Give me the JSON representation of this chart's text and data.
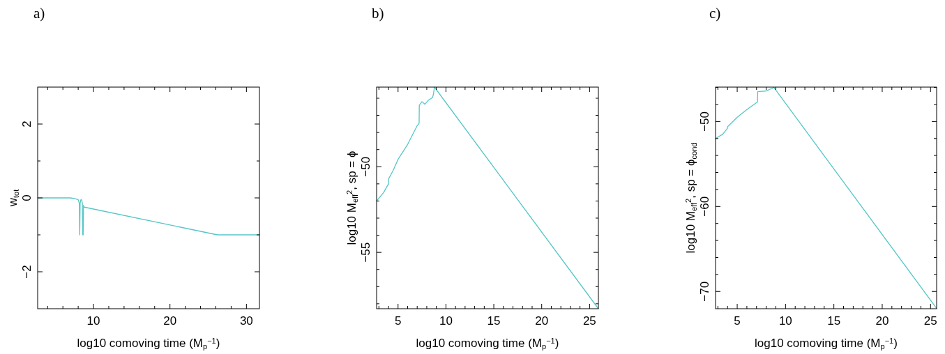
{
  "chart_data": [
    {
      "type": "line",
      "title": "a)",
      "xlabel": "log10 comoving time (M$_{p}$$^{−1}$)",
      "ylabel": "w$_{tot}$",
      "xlim": [
        2.7,
        31.7
      ],
      "ylim": [
        -3,
        3
      ],
      "xticks": [
        {
          "value": 4,
          "label": null
        },
        {
          "value": 6,
          "label": null
        },
        {
          "value": 8,
          "label": null
        },
        10,
        {
          "value": 12,
          "label": null
        },
        {
          "value": 14,
          "label": null
        },
        {
          "value": 16,
          "label": null
        },
        {
          "value": 18,
          "label": null
        },
        20,
        {
          "value": 22,
          "label": null
        },
        {
          "value": 24,
          "label": null
        },
        {
          "value": 26,
          "label": null
        },
        {
          "value": 28,
          "label": null
        },
        30
      ],
      "yticks": [
        -2,
        {
          "value": -1,
          "label": null
        },
        0,
        {
          "value": 1,
          "label": null
        },
        2
      ],
      "grid": false,
      "marker": "none",
      "line_style": "solid",
      "series": [
        {
          "color": "#55c6c6",
          "x": [
            2.7,
            5,
            7,
            7.6,
            8.0,
            8.15,
            8.2,
            8.25,
            8.35,
            8.45,
            8.55,
            8.6,
            8.65,
            8.7,
            8.75,
            8.8,
            26.2,
            31.7
          ],
          "values": [
            0,
            0,
            0,
            -0.02,
            -0.05,
            -0.15,
            -1,
            -0.15,
            -0.05,
            -0.05,
            -0.15,
            -1,
            -1,
            -0.2,
            -0.25,
            -0.25,
            -1,
            -1
          ]
        }
      ]
    },
    {
      "type": "line",
      "title": "b)",
      "xlabel": "log10 comoving time (M$_{p}$$^{−1}$)",
      "ylabel": "log10 M$_{eff}$$^{2}$, sp = ϕ",
      "xlim": [
        2.76,
        25.92
      ],
      "ylim": [
        -58.29,
        -45.35
      ],
      "xticks": [
        {
          "value": 3,
          "label": null
        },
        {
          "value": 4,
          "label": null
        },
        5,
        {
          "value": 6,
          "label": null
        },
        {
          "value": 7,
          "label": null
        },
        {
          "value": 8,
          "label": null
        },
        {
          "value": 9,
          "label": null
        },
        10,
        {
          "value": 11,
          "label": null
        },
        {
          "value": 12,
          "label": null
        },
        {
          "value": 13,
          "label": null
        },
        {
          "value": 14,
          "label": null
        },
        15,
        {
          "value": 16,
          "label": null
        },
        {
          "value": 17,
          "label": null
        },
        {
          "value": 18,
          "label": null
        },
        {
          "value": 19,
          "label": null
        },
        20,
        {
          "value": 21,
          "label": null
        },
        {
          "value": 22,
          "label": null
        },
        {
          "value": 23,
          "label": null
        },
        {
          "value": 24,
          "label": null
        },
        25
      ],
      "yticks": [
        {
          "value": -58,
          "label": null
        },
        {
          "value": -57,
          "label": null
        },
        {
          "value": -56,
          "label": null
        },
        -55,
        {
          "value": -54,
          "label": null
        },
        {
          "value": -53,
          "label": null
        },
        {
          "value": -52,
          "label": null
        },
        {
          "value": -51,
          "label": null
        },
        -50,
        {
          "value": -49,
          "label": null
        },
        {
          "value": -48,
          "label": null
        },
        {
          "value": -47,
          "label": null
        },
        {
          "value": -46,
          "label": null
        }
      ],
      "grid": false,
      "marker": "none",
      "line_style": "solid",
      "series": [
        {
          "color": "#55c6c6",
          "x": [
            2.76,
            3.5,
            4.0,
            4.02,
            4.5,
            5,
            6,
            7,
            7.2,
            7.22,
            7.5,
            7.8,
            8.2,
            8.6,
            8.7,
            8.8,
            25.92
          ],
          "values": [
            -52.0,
            -51.5,
            -51.0,
            -50.7,
            -50.2,
            -49.57,
            -48.7,
            -47.6,
            -47.46,
            -46.4,
            -46.2,
            -46.35,
            -46.1,
            -45.96,
            -45.75,
            -45.35,
            -58.29
          ]
        }
      ]
    },
    {
      "type": "line",
      "title": "c)",
      "xlabel": "log10 comoving time (M$_{p}$$^{−1}$)",
      "ylabel": "log10 M$_{eff}$$^{2}$, sp = ϕ$_{cond}$",
      "xlim": [
        2.76,
        25.63
      ],
      "ylim": [
        -72.03,
        -45.95
      ],
      "xticks": [
        {
          "value": 3,
          "label": null
        },
        {
          "value": 4,
          "label": null
        },
        5,
        {
          "value": 6,
          "label": null
        },
        {
          "value": 7,
          "label": null
        },
        {
          "value": 8,
          "label": null
        },
        {
          "value": 9,
          "label": null
        },
        10,
        {
          "value": 11,
          "label": null
        },
        {
          "value": 12,
          "label": null
        },
        {
          "value": 13,
          "label": null
        },
        {
          "value": 14,
          "label": null
        },
        15,
        {
          "value": 16,
          "label": null
        },
        {
          "value": 17,
          "label": null
        },
        {
          "value": 18,
          "label": null
        },
        {
          "value": 19,
          "label": null
        },
        20,
        {
          "value": 21,
          "label": null
        },
        {
          "value": 22,
          "label": null
        },
        {
          "value": 23,
          "label": null
        },
        {
          "value": 24,
          "label": null
        },
        25
      ],
      "yticks": [
        -70,
        {
          "value": -68,
          "label": null
        },
        {
          "value": -66,
          "label": null
        },
        {
          "value": -64,
          "label": null
        },
        {
          "value": -62,
          "label": null
        },
        -60,
        {
          "value": -58,
          "label": null
        },
        {
          "value": -56,
          "label": null
        },
        {
          "value": -54,
          "label": null
        },
        {
          "value": -52,
          "label": null
        },
        -50,
        {
          "value": -48,
          "label": null
        },
        {
          "value": -46,
          "label": null
        }
      ],
      "grid": false,
      "marker": "none",
      "line_style": "solid",
      "series": [
        {
          "color": "#55c6c6",
          "x": [
            2.76,
            3.5,
            3.99,
            4.01,
            5,
            6,
            7.1,
            7.12,
            8,
            8.8,
            25.63
          ],
          "values": [
            -52,
            -51.5,
            -50.8,
            -50.6,
            -49.5,
            -48.6,
            -47.7,
            -46.5,
            -46.4,
            -46,
            -72
          ]
        }
      ]
    }
  ]
}
